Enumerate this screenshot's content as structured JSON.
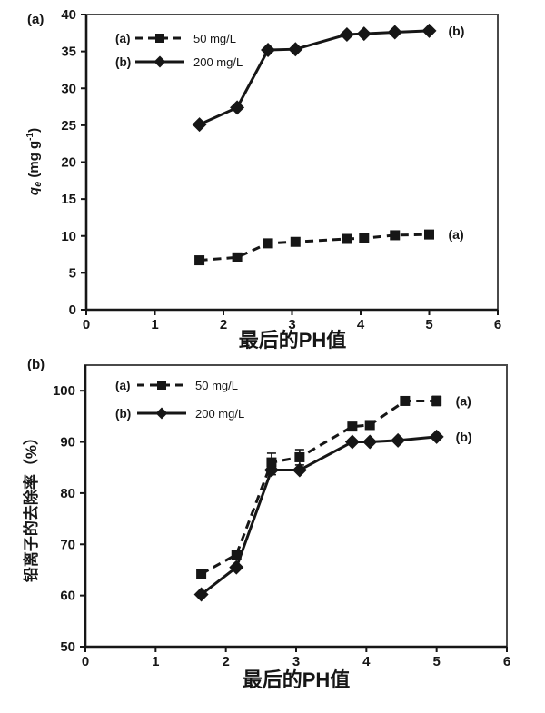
{
  "page": {
    "background": "#ffffff",
    "ink_color": "#161616",
    "box_color": "#4a4a4a"
  },
  "chart_data": [
    {
      "type": "line",
      "panel_label": "(a)",
      "xlabel": "最后的PH值",
      "ylabel": "qe (mg g-1)",
      "ylabel_parts": [
        {
          "t": "q",
          "italic": true
        },
        {
          "t": "e",
          "italic": true,
          "dy": 3,
          "size": 11
        },
        {
          "t": " (mg g",
          "dy": -3
        },
        {
          "t": "-1",
          "dy": -6,
          "size": 10
        },
        {
          "t": ")",
          "dy": 6
        }
      ],
      "xlim": [
        0,
        6
      ],
      "ylim": [
        0,
        40
      ],
      "xticks": [
        0,
        1,
        2,
        3,
        4,
        5,
        6
      ],
      "yticks": [
        0,
        5,
        10,
        15,
        20,
        25,
        30,
        35,
        40
      ],
      "grid": false,
      "legend_position": "upper-left",
      "series": [
        {
          "key": "(a)",
          "name": "50 mg/L",
          "marker": "square",
          "line": "dashed",
          "end_label": "(a)",
          "x": [
            1.65,
            2.2,
            2.65,
            3.05,
            3.8,
            4.05,
            4.5,
            5.0
          ],
          "y": [
            6.7,
            7.1,
            9.0,
            9.2,
            9.6,
            9.7,
            10.1,
            10.2
          ]
        },
        {
          "key": "(b)",
          "name": "200 mg/L",
          "marker": "diamond",
          "line": "solid",
          "end_label": "(b)",
          "x": [
            1.65,
            2.2,
            2.65,
            3.05,
            3.8,
            4.05,
            4.5,
            5.0
          ],
          "y": [
            25.1,
            27.4,
            35.2,
            35.3,
            37.3,
            37.4,
            37.6,
            37.8
          ]
        }
      ]
    },
    {
      "type": "line",
      "panel_label": "(b)",
      "xlabel": "最后的PH值",
      "ylabel": "铅离子的去除率（%）",
      "xlim": [
        0,
        6
      ],
      "ylim": [
        50,
        105
      ],
      "xticks": [
        0,
        1,
        2,
        3,
        4,
        5,
        6
      ],
      "yticks": [
        50,
        60,
        70,
        80,
        90,
        100
      ],
      "grid": false,
      "legend_position": "upper-left",
      "series": [
        {
          "key": "(a)",
          "name": "50 mg/L",
          "marker": "square",
          "line": "dashed",
          "end_label": "(a)",
          "x": [
            1.65,
            2.15,
            2.65,
            3.05,
            3.8,
            4.05,
            4.55,
            5.0
          ],
          "y": [
            64.2,
            68.0,
            86.0,
            87.0,
            93.0,
            93.3,
            98.0,
            98.0
          ],
          "yerr": [
            0,
            0,
            1.8,
            1.5,
            0,
            0,
            0,
            0.9
          ]
        },
        {
          "key": "(b)",
          "name": "200 mg/L",
          "marker": "diamond",
          "line": "solid",
          "end_label": "(b)",
          "x": [
            1.65,
            2.15,
            2.65,
            3.05,
            3.8,
            4.05,
            4.45,
            5.0
          ],
          "y": [
            60.2,
            65.5,
            84.5,
            84.5,
            90.0,
            90.0,
            90.3,
            91.0
          ],
          "yerr": [
            0,
            0,
            0.9,
            0,
            0,
            0,
            0,
            0
          ]
        }
      ]
    }
  ]
}
